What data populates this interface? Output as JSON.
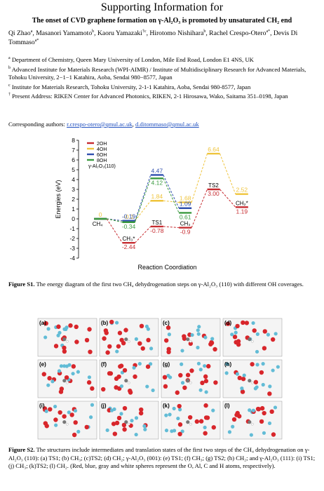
{
  "header": "Supporting Information for",
  "title": "The onset of CVD graphene formation on γ-Al₂O₃ is promoted by unsaturated CH₂ end",
  "authors": [
    {
      "name": "Qi Zhao",
      "mark": "a"
    },
    {
      "name": "Masanori Yamamoto",
      "mark": "b"
    },
    {
      "name": "Kaoru Yamazaki",
      "mark": "†c"
    },
    {
      "name": "Hirotomo Nishihara",
      "mark": "b"
    },
    {
      "name": "Rachel Crespo-Otero",
      "mark": "a*"
    },
    {
      "name": "Devis Di Tommaso",
      "mark": "a*"
    }
  ],
  "affiliations": [
    {
      "mark": "a",
      "text": "Department of Chemistry, Queen Mary University of London, Mile End Road, London E1 4NS, UK"
    },
    {
      "mark": "b",
      "text": "Advanced Institute for Materials Research (WPI-AIMR) / Institute of Multidisciplinary Research for Advanced Materials, Tohoku University, 2−1−1 Katahira, Aoba, Sendai 980−8577, Japan"
    },
    {
      "mark": "c",
      "text": "Institute for Materials Research, Tohoku University, 2-1-1 Katahira, Aoba, Sendai 980-8577, Japan"
    },
    {
      "mark": "†",
      "text": "Present Address: RIKEN Center for Advanced Photonics, RIKEN, 2-1 Hirosawa, Wako, Saitama 351–0198, Japan"
    }
  ],
  "corresponding": {
    "label": "Corresponding authors:",
    "emails": [
      "r.crespo-otero@qmul.ac.uk",
      "d.ditommaso@qmul.ac.uk"
    ]
  },
  "chart_data": {
    "type": "energy-levels",
    "y_label": "Energies (eV)",
    "x_label": "Reaction Coordiation",
    "legend_note": "γ-Al₂O₃(110)",
    "state_labels": [
      "CH₄",
      "CH₃*",
      "TS1",
      "CH₃",
      "TS2",
      "CH₂*"
    ],
    "ylim": [
      -4,
      8
    ],
    "yticks": [
      -4,
      -3,
      -2,
      -1,
      0,
      1,
      2,
      3,
      4,
      5,
      6,
      7,
      8
    ],
    "series": [
      {
        "name": "2OH",
        "color": "#c62a2f",
        "values": [
          0,
          -2.44,
          -0.78,
          -0.9,
          3.0,
          1.19
        ],
        "value_labels": [
          null,
          "-2.44",
          "-0.78",
          "-0.9",
          "3.00",
          "1.19"
        ]
      },
      {
        "name": "4OH",
        "color": "#efc43c",
        "values": [
          0,
          -0.2,
          1.84,
          1.68,
          6.64,
          2.52
        ],
        "value_labels": [
          "0",
          "-0.2",
          "1.84",
          "1.68",
          "6.64",
          "2.52"
        ]
      },
      {
        "name": "6OH",
        "color": "#2f4fae",
        "values": [
          0,
          -0.19,
          4.47,
          1.09,
          null,
          null
        ],
        "value_labels": [
          null,
          "-0.19",
          "4.47",
          "1.09",
          null,
          null
        ]
      },
      {
        "name": "8OH",
        "color": "#3a9a3f",
        "values": [
          0,
          -0.34,
          4.12,
          0.61,
          null,
          null
        ],
        "value_labels": [
          null,
          "-0.34",
          "4.12",
          "0.61",
          null,
          null
        ]
      }
    ]
  },
  "figure_s1": {
    "label": "Figure S1.",
    "caption": "The energy diagram of the first two CH₄ dehydrogenation steps on γ-Al₂O₃ (110) with different OH coverages."
  },
  "figure_s2": {
    "panels": [
      "(a)",
      "(b)",
      "(c)",
      "(d)",
      "(e)",
      "(f)",
      "(g)",
      "(h)",
      "(i)",
      "(j)",
      "(k)",
      "(l)"
    ],
    "label": "Figure S2.",
    "caption": "The structures include intermediates and translation states of the first two steps of the CH₄ dehydrogenation on γ-Al₂O₃ (110): (a) TS1; (b) CH₃; (c)TS2; (d) CH₂; γ-Al₂O₃ (001): (e) TS1; (f) CH₃; (g) TS2; (h) CH₂; and γ-Al₂O₃ (111): (i) TS1; (j) CH₃; (k)TS2; (l) CH₂. (Red, blue, gray and white spheres represent the O, Al, C and H atoms, respectively)."
  }
}
